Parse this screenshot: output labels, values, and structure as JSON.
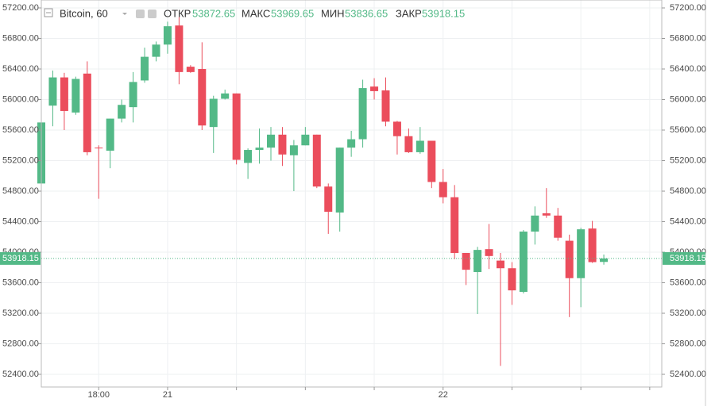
{
  "header": {
    "symbol": "Bitcoin, 60",
    "open_label": "ОТКР",
    "open": "53872.65",
    "high_label": "МАКС",
    "high": "53969.65",
    "low_label": "МИН",
    "low": "53836.65",
    "close_label": "ЗАКР",
    "close": "53918.15"
  },
  "chart_data": {
    "type": "candlestick",
    "categories": [
      null,
      null,
      null,
      null,
      null,
      "18:00",
      null,
      null,
      null,
      null,
      null,
      "21",
      null,
      null,
      null,
      null,
      null,
      null,
      null,
      null,
      null,
      null,
      null,
      null,
      null,
      null,
      null,
      null,
      null,
      null,
      null,
      null,
      null,
      null,
      null,
      "22",
      null,
      null,
      null,
      null,
      null,
      null,
      null,
      null,
      null,
      null,
      null,
      null,
      null,
      null
    ],
    "open": [
      54900,
      55920,
      56290,
      55830,
      56340,
      55370,
      55330,
      55750,
      55900,
      56250,
      56560,
      56720,
      56970,
      56430,
      56400,
      55640,
      56010,
      56080,
      55170,
      55340,
      55370,
      55540,
      55270,
      55400,
      55540,
      54860,
      54520,
      55370,
      55480,
      56170,
      56120,
      55710,
      55520,
      55310,
      55460,
      54920,
      54720,
      53990,
      53740,
      54040,
      53890,
      53790,
      53480,
      54270,
      54510,
      54480,
      54150,
      53660,
      54310,
      53872.65
    ],
    "high": [
      55800,
      56380,
      56350,
      56300,
      56500,
      55400,
      55750,
      56000,
      56360,
      56680,
      56760,
      57020,
      57080,
      56450,
      56750,
      56050,
      56130,
      56080,
      55360,
      55620,
      55640,
      55640,
      55470,
      55640,
      55540,
      54900,
      55370,
      55590,
      56260,
      56280,
      56290,
      55720,
      55620,
      55640,
      55460,
      55090,
      54880,
      53990,
      54070,
      54370,
      53990,
      53870,
      54290,
      54600,
      54840,
      54580,
      54230,
      54320,
      54410,
      53969.65
    ],
    "low": [
      54850,
      55650,
      55600,
      55800,
      55270,
      54700,
      55100,
      55700,
      55700,
      56220,
      56500,
      56600,
      56200,
      56350,
      55600,
      55300,
      56000,
      55150,
      54960,
      55160,
      55200,
      55130,
      54800,
      55400,
      54840,
      54240,
      54270,
      55250,
      55370,
      56000,
      55650,
      55280,
      55300,
      55290,
      54840,
      54640,
      53910,
      53570,
      53190,
      53780,
      52510,
      53310,
      53460,
      54100,
      54450,
      54150,
      53150,
      53280,
      53860,
      53836.65
    ],
    "close": [
      55700,
      56290,
      55850,
      56270,
      55310,
      55360,
      55750,
      55930,
      56230,
      56560,
      56720,
      56960,
      56360,
      56360,
      55660,
      56010,
      56080,
      55210,
      55340,
      55370,
      55540,
      55280,
      55400,
      55540,
      54860,
      54530,
      55370,
      55480,
      56150,
      56110,
      55710,
      55520,
      55310,
      55460,
      54920,
      54720,
      53990,
      53770,
      54030,
      53950,
      53790,
      53500,
      54270,
      54480,
      54480,
      54190,
      53660,
      54300,
      53870,
      53918.15
    ],
    "up_color": "#53b987",
    "down_color": "#eb4d5c",
    "ylim": [
      52234,
      57304
    ],
    "yticks": [
      {
        "value": 52400,
        "label": "52400.00"
      },
      {
        "value": 52800,
        "label": "52800.00"
      },
      {
        "value": 53200,
        "label": "53200.00"
      },
      {
        "value": 53600,
        "label": "53600.00"
      },
      {
        "value": 54000,
        "label": "54000.00"
      },
      {
        "value": 54400,
        "label": "54400.00"
      },
      {
        "value": 54800,
        "label": "54800.00"
      },
      {
        "value": 55200,
        "label": "55200.00"
      },
      {
        "value": 55600,
        "label": "55600.00"
      },
      {
        "value": 56000,
        "label": "56000.00"
      },
      {
        "value": 56400,
        "label": "56400.00"
      },
      {
        "value": 56800,
        "label": "56800.00"
      },
      {
        "value": 57200,
        "label": "57200.00"
      }
    ],
    "last_price": {
      "value": 53918.15,
      "label": "53918.15"
    },
    "grid": true
  }
}
